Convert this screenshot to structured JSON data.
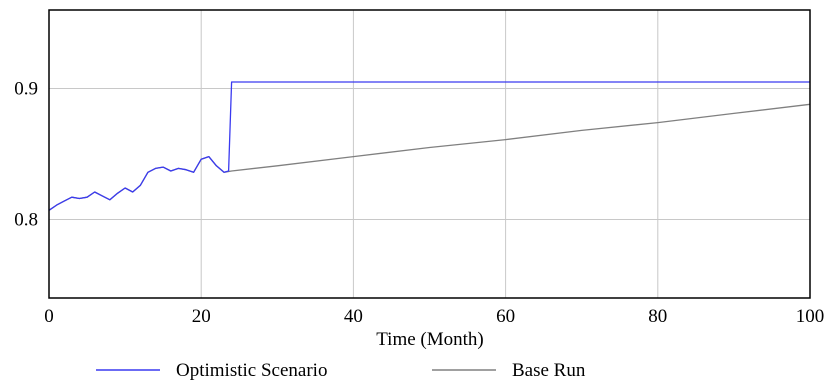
{
  "chart_data": {
    "type": "line",
    "title": "",
    "xlabel": "Time (Month)",
    "ylabel": "",
    "xlim": [
      0,
      100
    ],
    "ylim": [
      0.74,
      0.96
    ],
    "grid": true,
    "legend_position": "bottom",
    "x_ticks": [
      "0",
      "20",
      "40",
      "60",
      "80",
      "100"
    ],
    "y_ticks": [
      "0.8",
      "0.9"
    ],
    "series": [
      {
        "name": "Base Run",
        "color": "#808080",
        "x": [
          0,
          1,
          2,
          3,
          4,
          5,
          6,
          7,
          8,
          9,
          10,
          11,
          12,
          13,
          14,
          15,
          16,
          17,
          18,
          19,
          20,
          21,
          22,
          23,
          24,
          30,
          40,
          50,
          60,
          70,
          80,
          90,
          100
        ],
        "y": [
          0.807,
          0.811,
          0.814,
          0.817,
          0.816,
          0.817,
          0.821,
          0.818,
          0.815,
          0.82,
          0.824,
          0.821,
          0.826,
          0.836,
          0.839,
          0.84,
          0.837,
          0.839,
          0.838,
          0.836,
          0.846,
          0.848,
          0.841,
          0.836,
          0.837,
          0.841,
          0.848,
          0.855,
          0.861,
          0.868,
          0.874,
          0.881,
          0.888
        ]
      },
      {
        "name": "Optimistic Scenario",
        "color": "#3a3af0",
        "x": [
          0,
          1,
          2,
          3,
          4,
          5,
          6,
          7,
          8,
          9,
          10,
          11,
          12,
          13,
          14,
          15,
          16,
          17,
          18,
          19,
          20,
          21,
          22,
          23,
          23.6,
          24,
          30,
          40,
          50,
          60,
          70,
          80,
          90,
          100
        ],
        "y": [
          0.807,
          0.811,
          0.814,
          0.817,
          0.816,
          0.817,
          0.821,
          0.818,
          0.815,
          0.82,
          0.824,
          0.821,
          0.826,
          0.836,
          0.839,
          0.84,
          0.837,
          0.839,
          0.838,
          0.836,
          0.846,
          0.848,
          0.841,
          0.836,
          0.837,
          0.905,
          0.905,
          0.905,
          0.905,
          0.905,
          0.905,
          0.905,
          0.905,
          0.905
        ]
      }
    ]
  }
}
